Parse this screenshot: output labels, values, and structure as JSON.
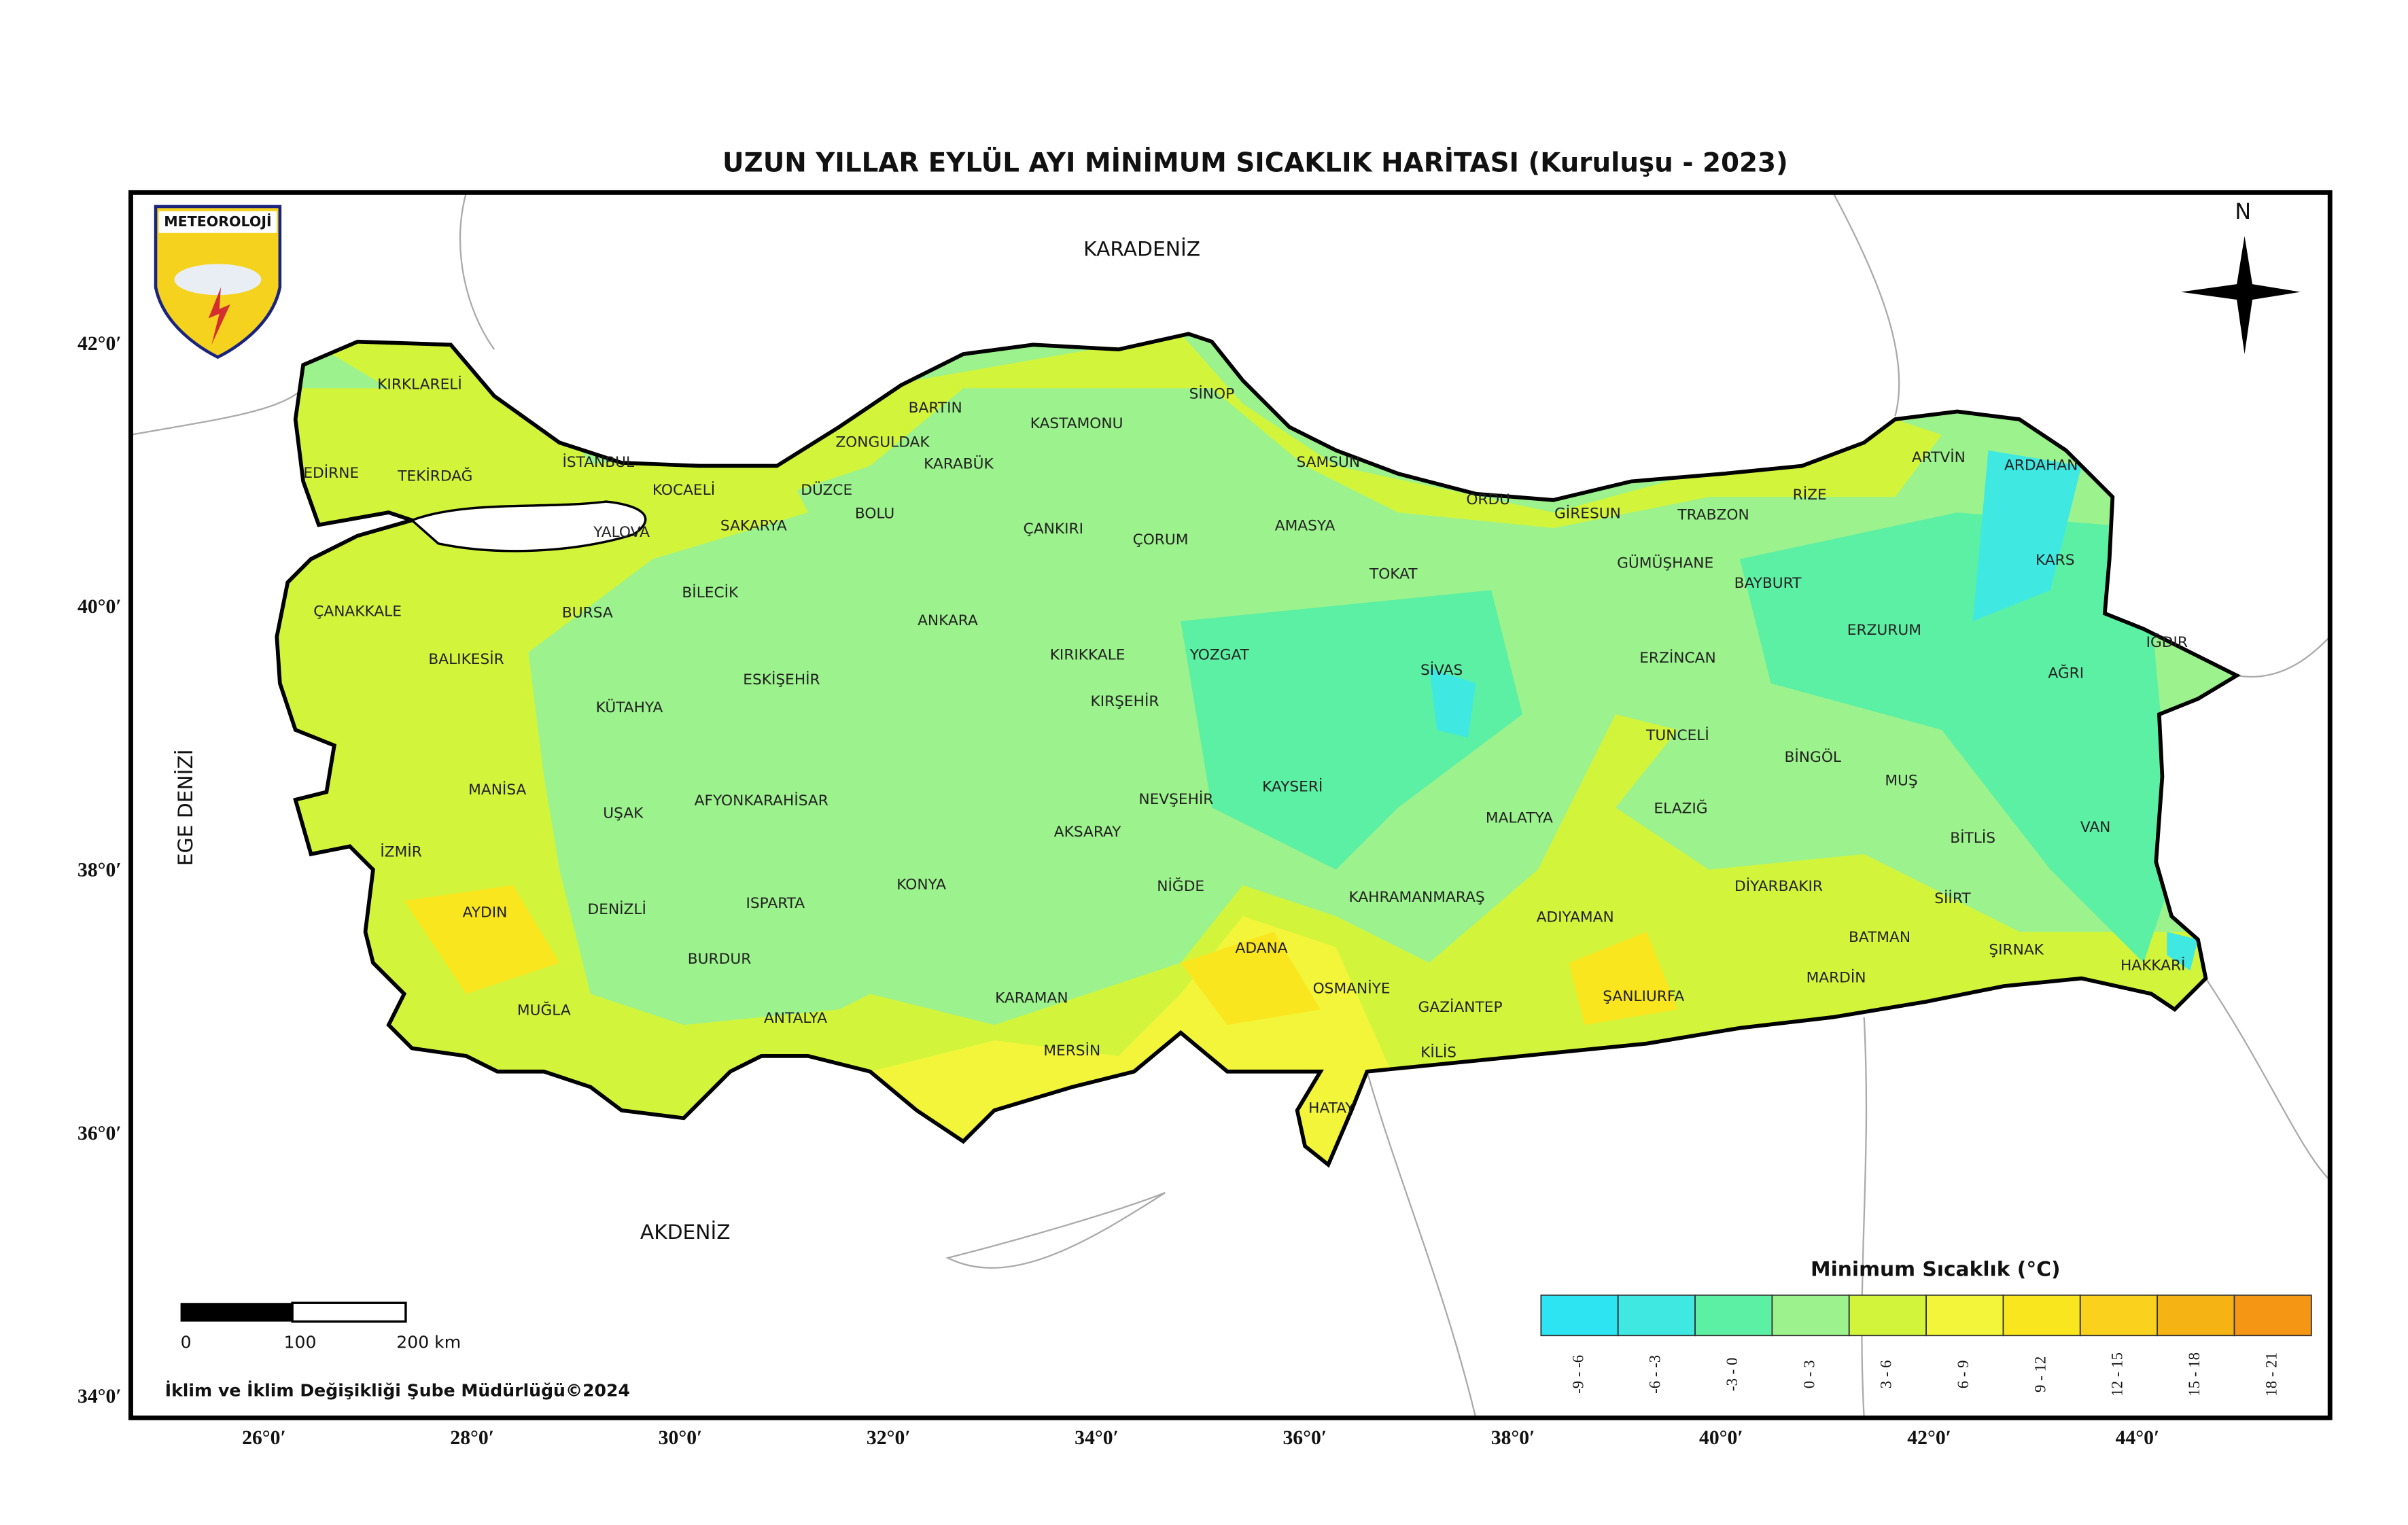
{
  "title": "UZUN YILLAR EYLÜL AYI MİNİMUM SICAKLIK HARİTASI (Kuruluşu - 2023)",
  "logo": "METEOROLOJİ",
  "compass": "N",
  "seas": [
    "KARADENİZ",
    "AKDENİZ",
    "EGE DENİZİ"
  ],
  "provinces": [
    "KIRKLARELİ",
    "EDİRNE",
    "TEKİRDAĞ",
    "İSTANBUL",
    "KOCAELİ",
    "YALOVA",
    "SAKARYA",
    "DÜZCE",
    "ZONGULDAK",
    "BARTIN",
    "KARABÜK",
    "BOLU",
    "KASTAMONU",
    "SİNOP",
    "SAMSUN",
    "ORDU",
    "GİRESUN",
    "TRABZON",
    "RİZE",
    "ARTVİN",
    "ARDAHAN",
    "KARS",
    "IĞDIR",
    "AĞRI",
    "ERZURUM",
    "BAYBURT",
    "GÜMÜŞHANE",
    "ERZİNCAN",
    "TOKAT",
    "AMASYA",
    "ÇORUM",
    "ÇANKIRI",
    "BİLECİK",
    "BURSA",
    "ÇANAKKALE",
    "BALIKESİR",
    "ANKARA",
    "KIRIKKALE",
    "YOZGAT",
    "SİVAS",
    "ESKİŞEHİR",
    "KÜTAHYA",
    "KIRŞEHİR",
    "TUNCELİ",
    "BİNGÖL",
    "MUŞ",
    "MANİSA",
    "AFYONKARAHİSAR",
    "KAYSERİ",
    "NEVŞEHİR",
    "ELAZIĞ",
    "MALATYA",
    "UŞAK",
    "İZMİR",
    "AKSARAY",
    "BİTLİS",
    "VAN",
    "KONYA",
    "NİĞDE",
    "DİYARBAKIR",
    "SİİRT",
    "KAHRAMANMARAŞ",
    "DENİZLİ",
    "AYDIN",
    "ISPARTA",
    "ADIYAMAN",
    "BATMAN",
    "ŞIRNAK",
    "ADANA",
    "BURDUR",
    "HAKKARİ",
    "OSMANİYE",
    "MARDİN",
    "ŞANLIURFA",
    "KARAMAN",
    "GAZİANTEP",
    "MUĞLA",
    "ANTALYA",
    "MERSİN",
    "KİLİS",
    "HATAY"
  ],
  "xlim": [
    24.72,
    45.85
  ],
  "ylim": [
    33.85,
    43.16
  ],
  "xticks": [
    {
      "value": 26,
      "label": "26°0′"
    },
    {
      "value": 28,
      "label": "28°0′"
    },
    {
      "value": 30,
      "label": "30°0′"
    },
    {
      "value": 32,
      "label": "32°0′"
    },
    {
      "value": 34,
      "label": "34°0′"
    },
    {
      "value": 36,
      "label": "36°0′"
    },
    {
      "value": 38,
      "label": "38°0′"
    },
    {
      "value": 40,
      "label": "40°0′"
    },
    {
      "value": 42,
      "label": "42°0′"
    },
    {
      "value": 44,
      "label": "44°0′"
    }
  ],
  "yticks": [
    {
      "value": 42,
      "label": "42°0′"
    },
    {
      "value": 40,
      "label": "40°0′"
    },
    {
      "value": 38,
      "label": "38°0′"
    },
    {
      "value": 36,
      "label": "36°0′"
    },
    {
      "value": 34,
      "label": "34°0′"
    }
  ],
  "legend": {
    "title": "Minimum Sıcaklık (°C)",
    "bins": [
      {
        "label": "-9 - -6",
        "color": "#2de4f2"
      },
      {
        "label": "-6 - -3",
        "color": "#40e8e2"
      },
      {
        "label": "-3 - 0",
        "color": "#5cf0a4"
      },
      {
        "label": "0 - 3",
        "color": "#9cf28c"
      },
      {
        "label": "3 - 6",
        "color": "#d2f53c"
      },
      {
        "label": "6 - 9",
        "color": "#f3f53a"
      },
      {
        "label": "9 - 12",
        "color": "#fae61e"
      },
      {
        "label": "12 - 15",
        "color": "#fad21e"
      },
      {
        "label": "15 - 18",
        "color": "#f5b414"
      },
      {
        "label": "18 - 21",
        "color": "#f59614"
      }
    ]
  },
  "scale_bar": {
    "ticks": [
      0,
      100,
      {
        "value": 200,
        "label": "200 km"
      }
    ]
  },
  "credit": "İklim ve İklim Değişikliği Şube Müdürlüğü©2024"
}
